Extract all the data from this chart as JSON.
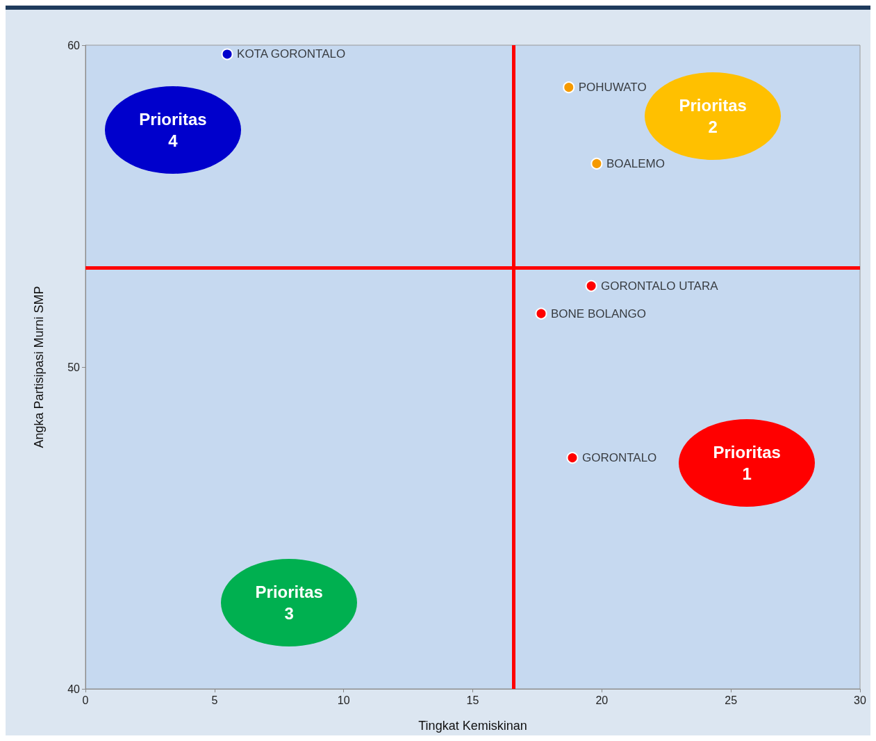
{
  "chart_data": {
    "type": "scatter",
    "xlabel": "Tingkat Kemiskinan",
    "ylabel": "Angka Partisipasi Murni SMP",
    "xlim": [
      0,
      30
    ],
    "xticks": [
      0,
      5,
      10,
      15,
      20,
      25,
      30
    ],
    "ylim": [
      40,
      60
    ],
    "yticks": [
      40,
      50,
      60
    ],
    "grid": false,
    "marker": "circle",
    "series": [
      {
        "color": "#0000cc",
        "x": [
          5.49
        ],
        "values": [
          59.72
        ]
      },
      {
        "color": "#f59a00",
        "x": [
          18.72,
          19.8
        ],
        "values": [
          58.69,
          56.32
        ]
      },
      {
        "color": "#ff0000",
        "x": [
          19.59,
          17.65,
          18.86
        ],
        "values": [
          52.52,
          51.66,
          47.18
        ]
      }
    ],
    "ref_lines": [
      {
        "axis": "x",
        "value": 16.57,
        "color": "#ff0000"
      },
      {
        "axis": "y",
        "value": 53.08,
        "color": "#ff0000"
      }
    ],
    "annotations": [
      {
        "text": "KOTA GORONTALO",
        "x": 5.49,
        "y": 59.72
      },
      {
        "text": "POHUWATO",
        "x": 18.72,
        "y": 58.69
      },
      {
        "text": "BOALEMO",
        "x": 19.8,
        "y": 56.32
      },
      {
        "text": "GORONTALO UTARA",
        "x": 19.59,
        "y": 52.52
      },
      {
        "text": "BONE BOLANGO",
        "x": 17.65,
        "y": 51.66
      },
      {
        "text": "GORONTALO",
        "x": 18.86,
        "y": 47.18
      },
      "Prioritas\n4",
      "Prioritas\n2",
      "Prioritas\n1",
      "Prioritas\n3"
    ]
  }
}
